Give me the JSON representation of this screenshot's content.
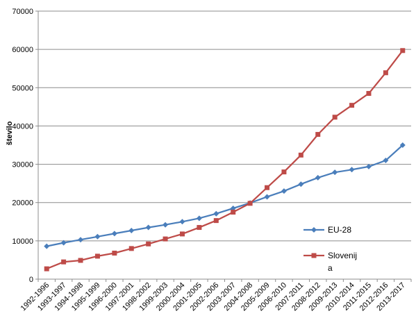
{
  "chart_data": {
    "type": "line",
    "title": "",
    "xlabel": "",
    "ylabel": "število",
    "ylim": [
      0,
      70000
    ],
    "yticks": [
      0,
      10000,
      20000,
      30000,
      40000,
      50000,
      60000,
      70000
    ],
    "ytick_labels": [
      "0",
      "10000",
      "20000",
      "30000",
      "40000",
      "50000",
      "60000",
      "70000"
    ],
    "grid": "horizontal",
    "legend_position": "right",
    "categories": [
      "1992-1996",
      "1993-1997",
      "1994-1998",
      "1995-1999",
      "1996-2000",
      "1997-2001",
      "1998-2002",
      "1999-2003",
      "2000-2004",
      "2001-2005",
      "2002-2006",
      "2003-2007",
      "2004-2008",
      "2005-2009",
      "2006-2010",
      "2007-2011",
      "2008-2012",
      "2009-2013",
      "2010-2014",
      "2011-2015",
      "2012-2016",
      "2013-2017"
    ],
    "series": [
      {
        "name": "EU-28",
        "color": "#4a7ebb",
        "marker": "diamond",
        "values": [
          8600,
          9500,
          10300,
          11100,
          11900,
          12700,
          13500,
          14200,
          15000,
          15900,
          17100,
          18500,
          19900,
          21500,
          23000,
          24800,
          26500,
          27900,
          28600,
          29400,
          31000,
          35000
        ]
      },
      {
        "name": "Slovenija",
        "color": "#be4b48",
        "marker": "square",
        "values": [
          2700,
          4500,
          4900,
          6000,
          6800,
          8000,
          9200,
          10500,
          11800,
          13500,
          15300,
          17500,
          19800,
          23900,
          28000,
          32400,
          37800,
          42300,
          45400,
          48500,
          53900,
          59700
        ]
      }
    ]
  }
}
